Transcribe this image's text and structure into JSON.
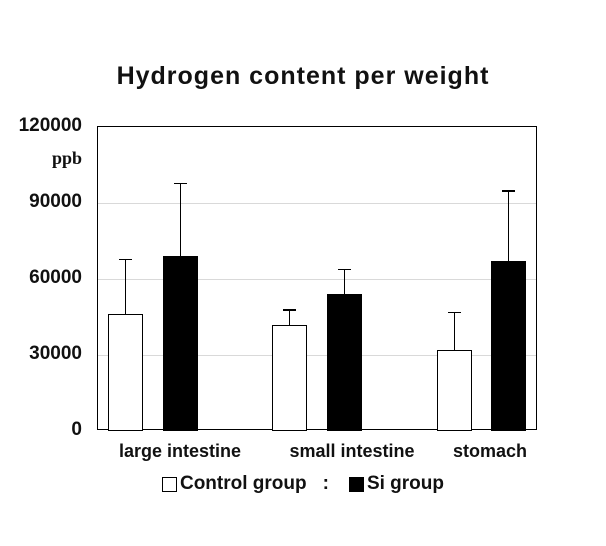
{
  "title": "Hydrogen content per weight",
  "axis_unit": "ppb",
  "legend": {
    "control_label": "Control group",
    "separator": ":",
    "si_label": "Si group"
  },
  "colors": {
    "control_fill": "#ffffff",
    "si_fill": "#000000",
    "border": "#000000",
    "gridline": "#d9d9d9",
    "text": "#111111"
  },
  "chart_data": {
    "type": "bar",
    "title": "Hydrogen content per weight",
    "categories": [
      "large intestine",
      "small intestine",
      "stomach"
    ],
    "series": [
      {
        "name": "Control group",
        "fill": "#ffffff",
        "values": [
          46000,
          42000,
          32000
        ],
        "error_plus": [
          22000,
          6000,
          15000
        ]
      },
      {
        "name": "Si group",
        "fill": "#000000",
        "values": [
          69000,
          54000,
          67000
        ],
        "error_plus": [
          29000,
          10000,
          28000
        ]
      }
    ],
    "xlabel": "",
    "ylabel": "ppb",
    "ylim": [
      0,
      120000
    ],
    "yticks": [
      0,
      30000,
      60000,
      90000,
      120000
    ],
    "grid": true,
    "legend_position": "bottom"
  }
}
